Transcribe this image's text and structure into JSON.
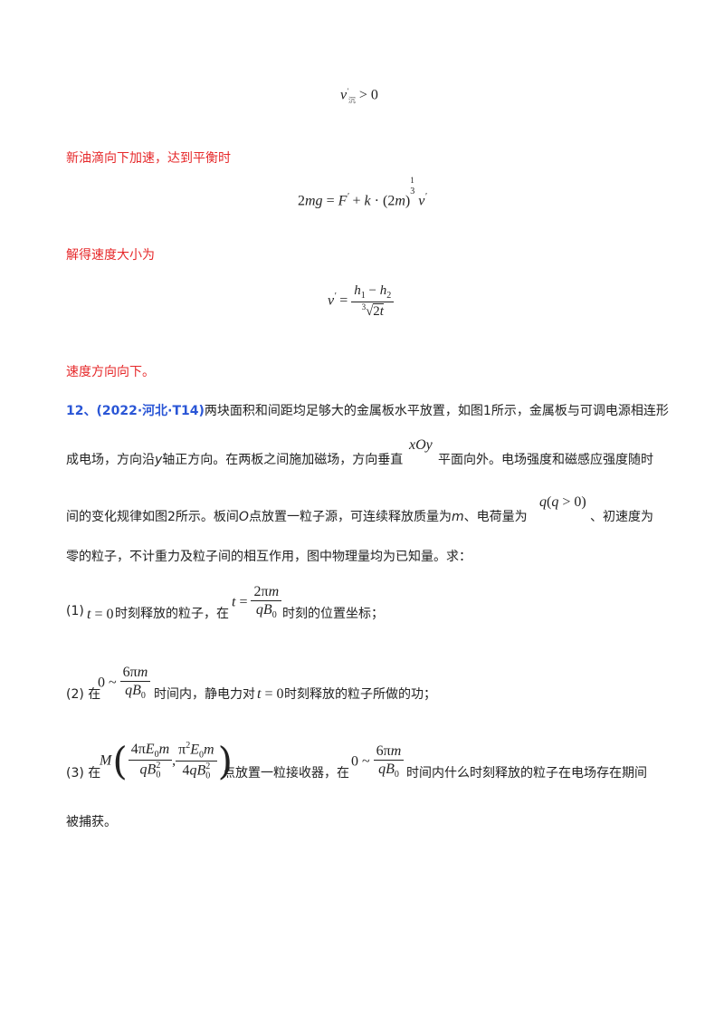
{
  "solution": {
    "line1": "新油滴向下加速，达到平衡时",
    "line2": "解得速度大小为",
    "line3": "速度方向向下。"
  },
  "problem": {
    "number": "12、",
    "source": "(2022·河北·T14)",
    "text1": "两块面积和间距均足够大的金属板水平放置，如图1所示，金属板与可调电源相连形",
    "text2a": "成电场，方向沿",
    "text2b": "y",
    "text2c": "轴正方向。在两板之间施加磁场，方向垂直",
    "text2d": "平面向外。电场强度和磁感应强度随时",
    "text3a": "间的变化规律如图2所示。板间",
    "text3b": "O",
    "text3c": "点放置一粒子源，可连续释放质量为",
    "text3d": "m",
    "text3e": "、电荷量为",
    "text3f": "、初速度为",
    "text4": "零的粒子，不计重力及粒子间的相互作用，图中物理量均为已知量。求：",
    "q1a": "(1)",
    "q1b": "时刻释放的粒子，在",
    "q1c": "时刻的位置坐标；",
    "q2a": "(2) 在",
    "q2b": "时间内，静电力对",
    "q2c": "时刻释放的粒子所做的功；",
    "q3a": "(3) 在",
    "q3b": "点放置一粒接收器，在",
    "q3c": "时间内什么时刻释放的粒子在电场存在期间",
    "q4": "被捕获。"
  }
}
